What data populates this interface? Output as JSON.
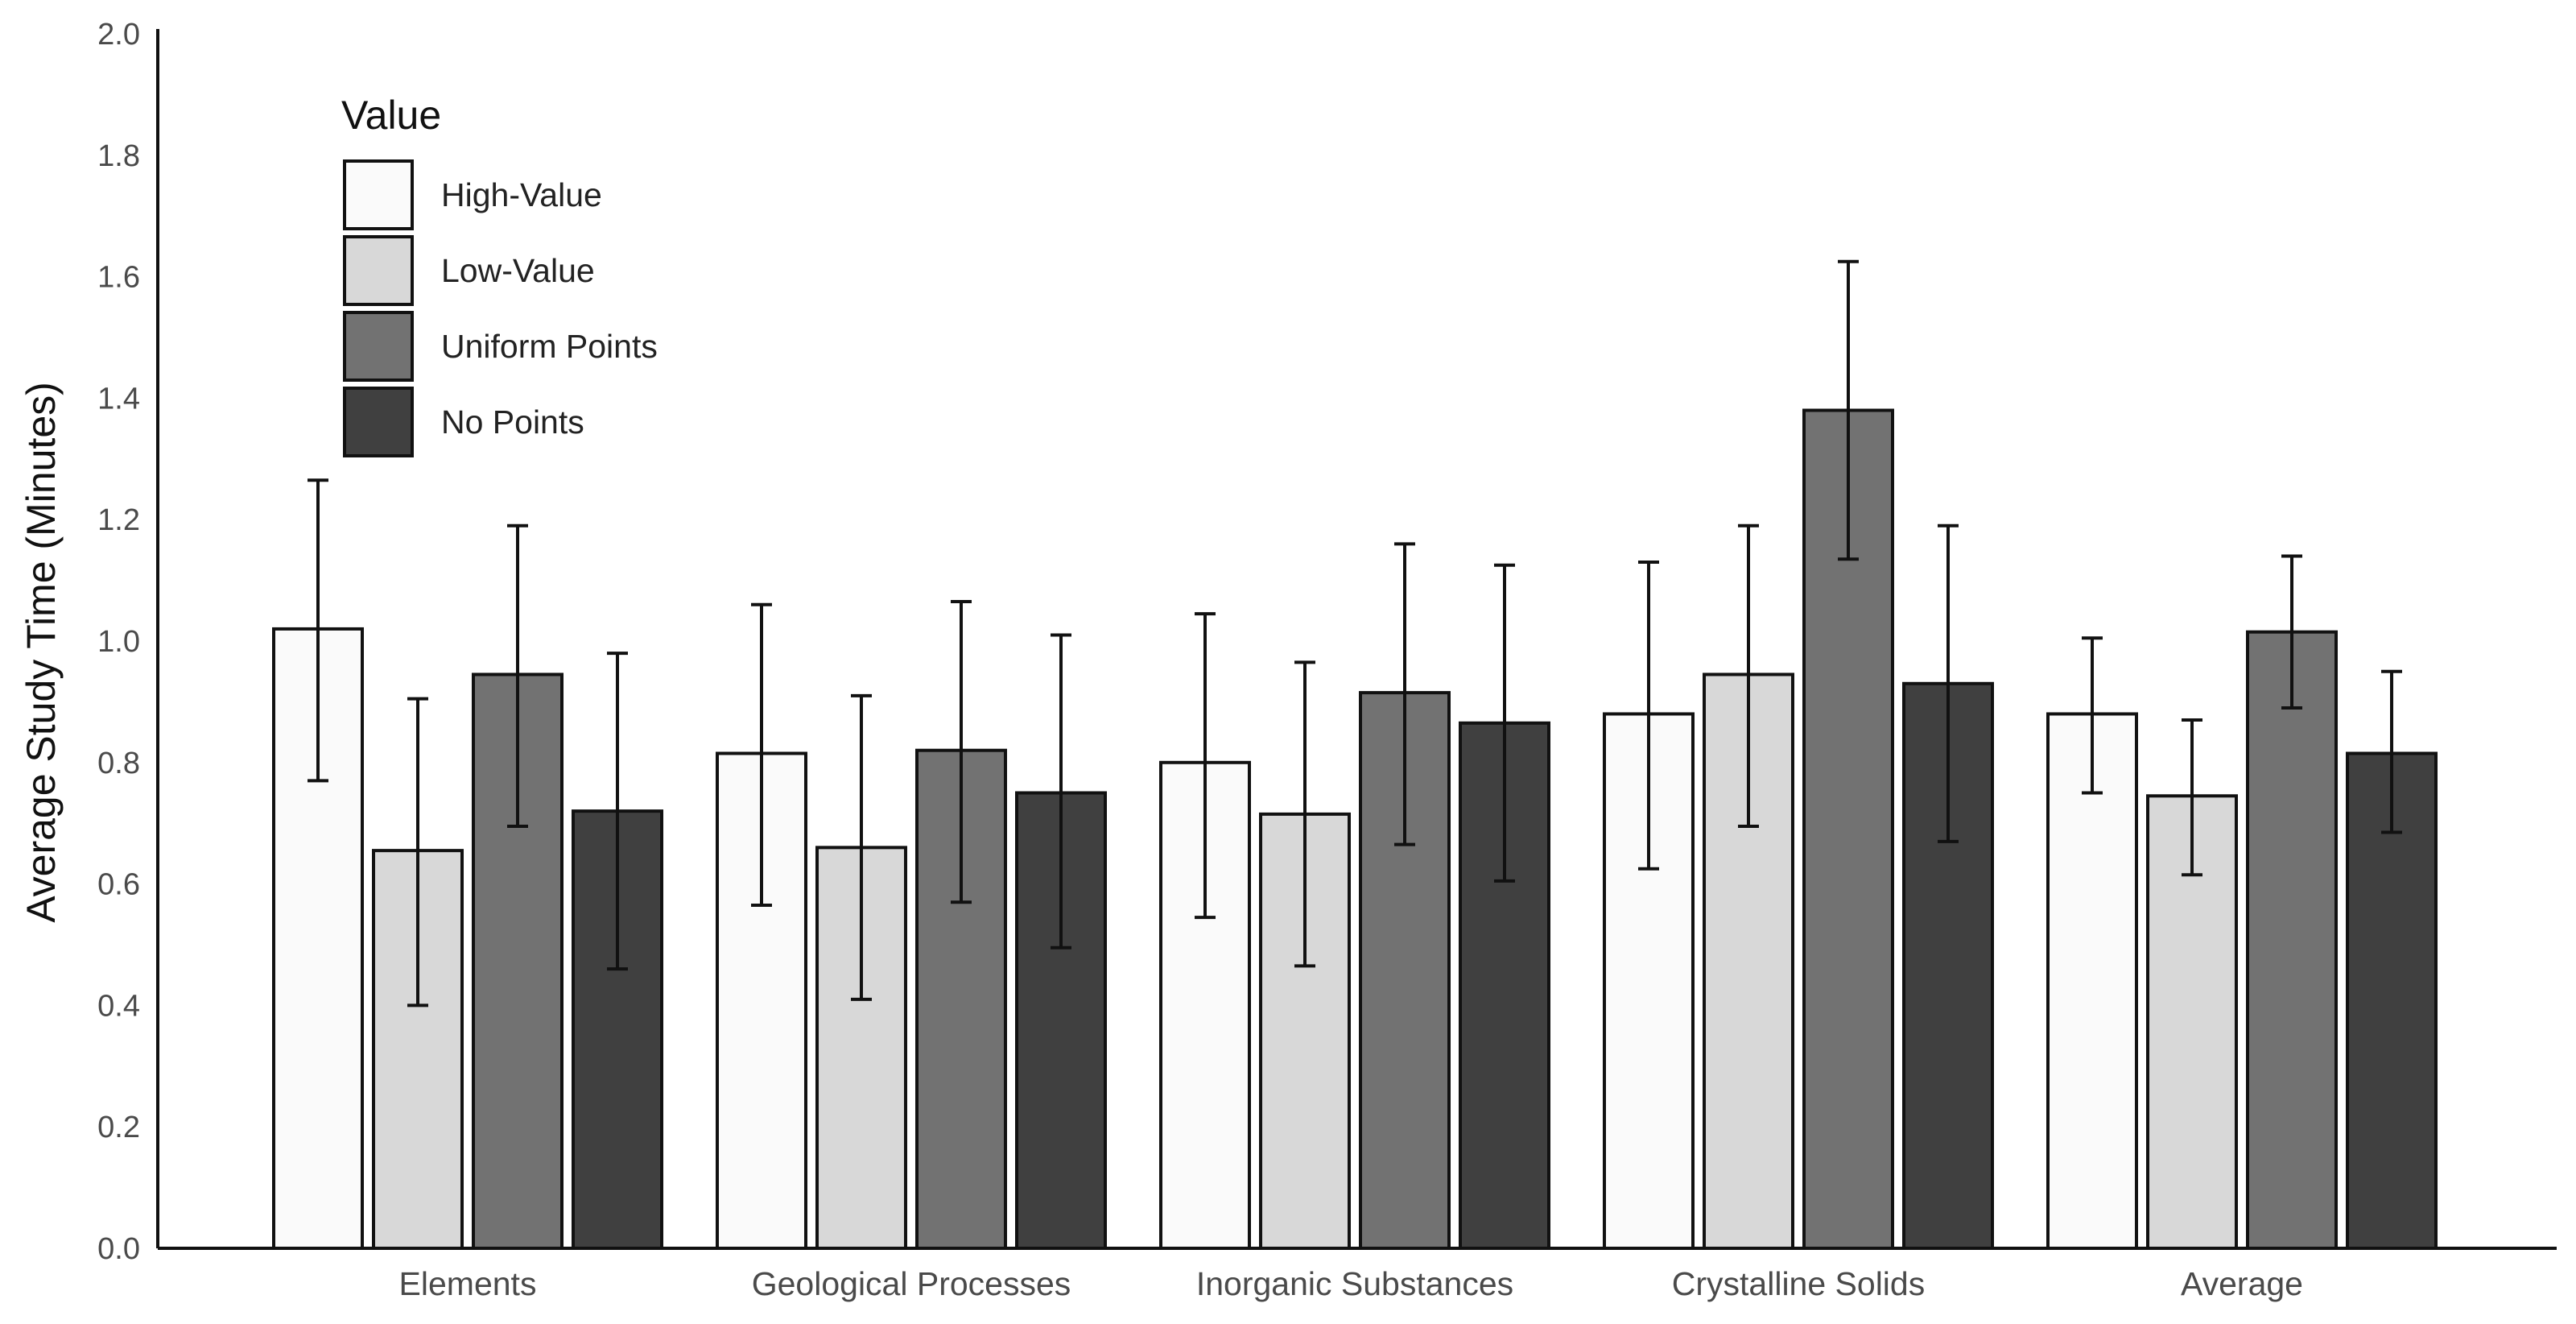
{
  "chart_data": {
    "type": "bar",
    "title": "",
    "xlabel": "",
    "ylabel": "Average Study Time (Minutes)",
    "ylim": [
      0,
      2.0
    ],
    "yticks": [
      "0.0",
      "0.2",
      "0.4",
      "0.6",
      "0.8",
      "1.0",
      "1.2",
      "1.4",
      "1.6",
      "1.8",
      "2.0"
    ],
    "categories": [
      "Elements",
      "Geological Processes",
      "Inorganic Substances",
      "Crystalline Solids",
      "Average"
    ],
    "legend": {
      "title": "Value",
      "placement": "top-left"
    },
    "grid": false,
    "series": [
      {
        "name": "High-Value",
        "color": "#fafafa",
        "values": [
          1.02,
          0.815,
          0.8,
          0.88,
          0.88
        ],
        "err_low": [
          0.77,
          0.565,
          0.545,
          0.625,
          0.75
        ],
        "err_high": [
          1.265,
          1.06,
          1.045,
          1.13,
          1.005
        ]
      },
      {
        "name": "Low-Value",
        "color": "#d8d8d8",
        "values": [
          0.655,
          0.66,
          0.715,
          0.945,
          0.745
        ],
        "err_low": [
          0.4,
          0.41,
          0.465,
          0.695,
          0.615
        ],
        "err_high": [
          0.905,
          0.91,
          0.965,
          1.19,
          0.87
        ]
      },
      {
        "name": "Uniform Points",
        "color": "#727272",
        "values": [
          0.945,
          0.82,
          0.915,
          1.38,
          1.015
        ],
        "err_low": [
          0.695,
          0.57,
          0.665,
          1.135,
          0.89
        ],
        "err_high": [
          1.19,
          1.065,
          1.16,
          1.625,
          1.14
        ]
      },
      {
        "name": "No Points",
        "color": "#404040",
        "values": [
          0.72,
          0.75,
          0.865,
          0.93,
          0.815
        ],
        "err_low": [
          0.46,
          0.495,
          0.605,
          0.67,
          0.685
        ],
        "err_high": [
          0.98,
          1.01,
          1.125,
          1.19,
          0.95
        ]
      }
    ]
  }
}
